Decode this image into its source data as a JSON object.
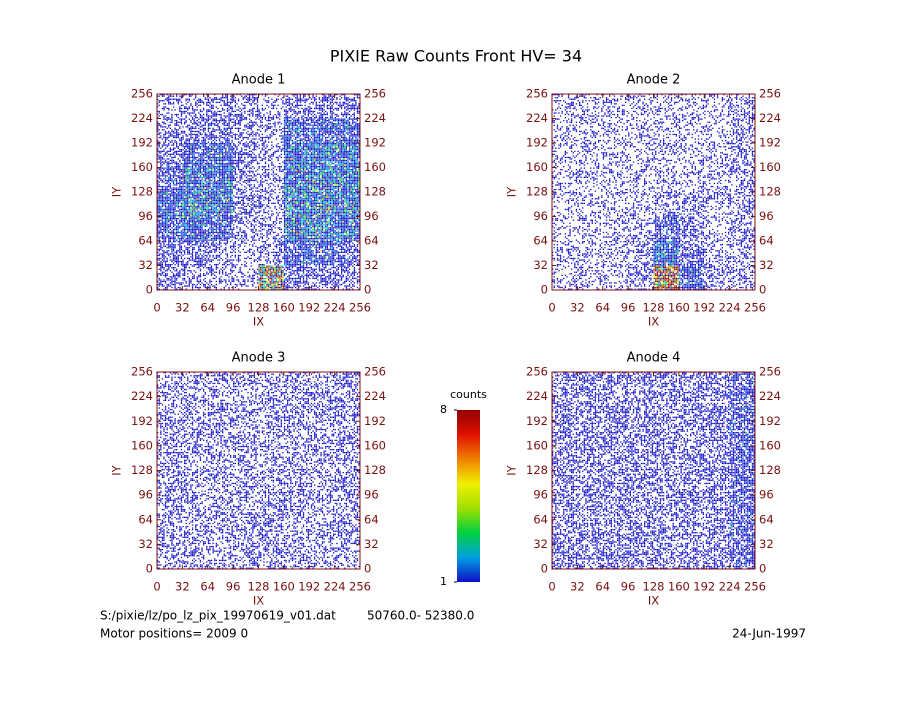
{
  "title": "PIXIE Raw Counts Front HV= 34",
  "chart_data": [
    {
      "type": "heatmap",
      "title": "Anode 1",
      "xlabel": "IX",
      "ylabel": "IY",
      "xlim": [
        0,
        256
      ],
      "ylim": [
        0,
        256
      ],
      "xticks": [
        0,
        32,
        64,
        96,
        128,
        160,
        192,
        224,
        256
      ],
      "yticks": [
        0,
        32,
        64,
        96,
        128,
        160,
        192,
        224,
        256
      ],
      "grid": [
        [
          0.4,
          0.4,
          0.5,
          0.4,
          0.3,
          0.5,
          0.5,
          0.5
        ],
        [
          0.5,
          0.5,
          0.6,
          0.4,
          0.4,
          0.8,
          0.8,
          0.8
        ],
        [
          0.6,
          0.8,
          0.9,
          0.5,
          0.4,
          1.0,
          1.0,
          1.0
        ],
        [
          0.7,
          1.0,
          1.0,
          0.5,
          0.4,
          1.1,
          1.2,
          1.1
        ],
        [
          0.9,
          1.1,
          1.0,
          0.5,
          0.4,
          1.2,
          1.2,
          1.1
        ],
        [
          0.8,
          0.9,
          0.8,
          0.4,
          0.4,
          1.2,
          1.1,
          1.0
        ],
        [
          0.6,
          0.6,
          0.5,
          0.3,
          0.4,
          0.8,
          0.8,
          0.7
        ],
        [
          0.5,
          0.4,
          0.4,
          0.3,
          3.0,
          0.6,
          0.5,
          0.5
        ]
      ]
    },
    {
      "type": "heatmap",
      "title": "Anode 2",
      "xlabel": "IX",
      "ylabel": "IY",
      "xlim": [
        0,
        256
      ],
      "ylim": [
        0,
        256
      ],
      "xticks": [
        0,
        32,
        64,
        96,
        128,
        160,
        192,
        224,
        256
      ],
      "yticks": [
        0,
        32,
        64,
        96,
        128,
        160,
        192,
        224,
        256
      ],
      "grid": [
        [
          0.3,
          0.3,
          0.3,
          0.3,
          0.3,
          0.3,
          0.3,
          0.4
        ],
        [
          0.3,
          0.3,
          0.3,
          0.3,
          0.3,
          0.3,
          0.3,
          0.4
        ],
        [
          0.3,
          0.3,
          0.3,
          0.3,
          0.3,
          0.3,
          0.3,
          0.4
        ],
        [
          0.3,
          0.3,
          0.3,
          0.3,
          0.3,
          0.3,
          0.3,
          0.4
        ],
        [
          0.3,
          0.3,
          0.3,
          0.3,
          0.4,
          0.4,
          0.3,
          0.4
        ],
        [
          0.3,
          0.3,
          0.3,
          0.3,
          0.7,
          0.5,
          0.3,
          0.4
        ],
        [
          0.3,
          0.3,
          0.3,
          0.4,
          0.9,
          0.6,
          0.3,
          0.4
        ],
        [
          0.3,
          0.3,
          0.3,
          0.5,
          6.0,
          0.8,
          0.4,
          0.4
        ]
      ]
    },
    {
      "type": "heatmap",
      "title": "Anode 3",
      "xlabel": "IX",
      "ylabel": "IY",
      "xlim": [
        0,
        256
      ],
      "ylim": [
        0,
        256
      ],
      "xticks": [
        0,
        32,
        64,
        96,
        128,
        160,
        192,
        224,
        256
      ],
      "yticks": [
        0,
        32,
        64,
        96,
        128,
        160,
        192,
        224,
        256
      ],
      "grid": [
        [
          0.4,
          0.4,
          0.4,
          0.4,
          0.4,
          0.4,
          0.4,
          0.4
        ],
        [
          0.4,
          0.4,
          0.4,
          0.4,
          0.4,
          0.4,
          0.4,
          0.5
        ],
        [
          0.4,
          0.4,
          0.4,
          0.4,
          0.4,
          0.4,
          0.4,
          0.4
        ],
        [
          0.4,
          0.4,
          0.4,
          0.4,
          0.4,
          0.4,
          0.4,
          0.4
        ],
        [
          0.4,
          0.4,
          0.4,
          0.4,
          0.4,
          0.4,
          0.4,
          0.4
        ],
        [
          0.4,
          0.4,
          0.4,
          0.4,
          0.5,
          0.4,
          0.4,
          0.4
        ],
        [
          0.4,
          0.4,
          0.4,
          0.4,
          0.5,
          0.4,
          0.4,
          0.4
        ],
        [
          0.4,
          0.4,
          0.4,
          0.4,
          0.4,
          0.4,
          0.4,
          0.4
        ]
      ]
    },
    {
      "type": "heatmap",
      "title": "Anode 4",
      "xlabel": "IX",
      "ylabel": "IY",
      "xlim": [
        0,
        256
      ],
      "ylim": [
        0,
        256
      ],
      "xticks": [
        0,
        32,
        64,
        96,
        128,
        160,
        192,
        224,
        256
      ],
      "yticks": [
        0,
        32,
        64,
        96,
        128,
        160,
        192,
        224,
        256
      ],
      "grid": [
        [
          0.5,
          0.5,
          0.5,
          0.5,
          0.5,
          0.5,
          0.5,
          0.7
        ],
        [
          0.5,
          0.5,
          0.5,
          0.5,
          0.5,
          0.5,
          0.5,
          0.7
        ],
        [
          0.5,
          0.5,
          0.5,
          0.5,
          0.5,
          0.5,
          0.5,
          0.7
        ],
        [
          0.5,
          0.5,
          0.5,
          0.5,
          0.5,
          0.5,
          0.5,
          0.7
        ],
        [
          0.5,
          0.5,
          0.5,
          0.5,
          0.5,
          0.5,
          0.5,
          0.7
        ],
        [
          0.5,
          0.5,
          0.5,
          0.5,
          0.5,
          0.5,
          0.5,
          0.7
        ],
        [
          0.5,
          0.5,
          0.5,
          0.5,
          0.5,
          0.5,
          0.5,
          0.7
        ],
        [
          0.6,
          0.5,
          0.5,
          0.5,
          0.5,
          0.5,
          0.5,
          0.7
        ]
      ]
    }
  ],
  "colorbar": {
    "label": "counts",
    "lim": [
      1,
      8
    ],
    "ticks": [
      1,
      8
    ],
    "colors": [
      "#1010c8",
      "#00a0e0",
      "#00d040",
      "#a0e000",
      "#f0f000",
      "#f08000",
      "#e01000",
      "#900000"
    ]
  },
  "footer": {
    "file": "S:/pixie/lz/po_lz_pix_19970619_v01.dat",
    "range": "50760.0- 52380.0",
    "motor": "Motor positions= 2009 0",
    "date": "24-Jun-1997"
  }
}
